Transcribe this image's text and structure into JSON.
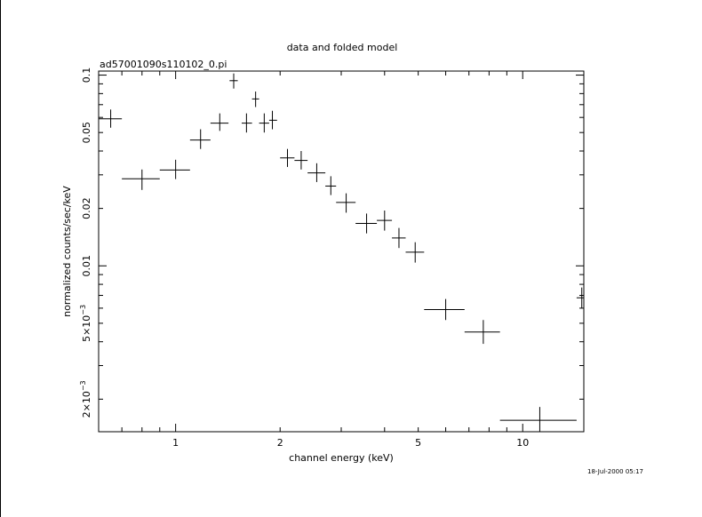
{
  "chart_data": {
    "type": "scatter",
    "title": "data and folded model",
    "subtitle": "ad57001090s110102_0.pi",
    "xlabel": "channel energy (keV)",
    "ylabel": "normalized counts/sec/keV",
    "timestamp": "18-Jul-2000 05:17",
    "xscale": "log",
    "yscale": "log",
    "xlim": [
      0.6,
      15.0
    ],
    "ylim": [
      0.00135,
      0.105
    ],
    "x_ticks": [
      {
        "value": 1,
        "label": "1"
      },
      {
        "value": 2,
        "label": "2"
      },
      {
        "value": 5,
        "label": "5"
      },
      {
        "value": 10,
        "label": "10"
      }
    ],
    "y_ticks": [
      {
        "value": 0.1,
        "label": "0.1"
      },
      {
        "value": 0.05,
        "label": "0.05"
      },
      {
        "value": 0.02,
        "label": "0.02"
      },
      {
        "value": 0.01,
        "label": "0.01"
      },
      {
        "value": 0.005,
        "label": "5×10",
        "exp": "−3"
      },
      {
        "value": 0.002,
        "label": "2×10",
        "exp": "−3"
      }
    ],
    "grid": false,
    "series": [
      {
        "points": [
          {
            "x": 0.65,
            "xlo": 0.6,
            "xhi": 0.7,
            "y": 0.059,
            "ylo": 0.053,
            "yhi": 0.066
          },
          {
            "x": 0.8,
            "xlo": 0.7,
            "xhi": 0.9,
            "y": 0.0286,
            "ylo": 0.025,
            "yhi": 0.032
          },
          {
            "x": 1.0,
            "xlo": 0.9,
            "xhi": 1.1,
            "y": 0.0318,
            "ylo": 0.0285,
            "yhi": 0.036
          },
          {
            "x": 1.18,
            "xlo": 1.1,
            "xhi": 1.26,
            "y": 0.0457,
            "ylo": 0.041,
            "yhi": 0.052
          },
          {
            "x": 1.34,
            "xlo": 1.26,
            "xhi": 1.42,
            "y": 0.056,
            "ylo": 0.051,
            "yhi": 0.063
          },
          {
            "x": 1.47,
            "xlo": 1.43,
            "xhi": 1.51,
            "y": 0.0935,
            "ylo": 0.085,
            "yhi": 0.102
          },
          {
            "x": 1.6,
            "xlo": 1.55,
            "xhi": 1.66,
            "y": 0.056,
            "ylo": 0.05,
            "yhi": 0.063
          },
          {
            "x": 1.7,
            "xlo": 1.66,
            "xhi": 1.74,
            "y": 0.075,
            "ylo": 0.068,
            "yhi": 0.082
          },
          {
            "x": 1.8,
            "xlo": 1.74,
            "xhi": 1.86,
            "y": 0.056,
            "ylo": 0.05,
            "yhi": 0.063
          },
          {
            "x": 1.9,
            "xlo": 1.86,
            "xhi": 1.96,
            "y": 0.058,
            "ylo": 0.052,
            "yhi": 0.065
          },
          {
            "x": 2.1,
            "xlo": 2.0,
            "xhi": 2.2,
            "y": 0.0368,
            "ylo": 0.033,
            "yhi": 0.041
          },
          {
            "x": 2.3,
            "xlo": 2.2,
            "xhi": 2.4,
            "y": 0.0357,
            "ylo": 0.032,
            "yhi": 0.04
          },
          {
            "x": 2.55,
            "xlo": 2.4,
            "xhi": 2.7,
            "y": 0.0307,
            "ylo": 0.0275,
            "yhi": 0.0345
          },
          {
            "x": 2.8,
            "xlo": 2.7,
            "xhi": 2.9,
            "y": 0.0262,
            "ylo": 0.0235,
            "yhi": 0.0295
          },
          {
            "x": 3.1,
            "xlo": 2.9,
            "xhi": 3.3,
            "y": 0.0215,
            "ylo": 0.019,
            "yhi": 0.024
          },
          {
            "x": 3.55,
            "xlo": 3.3,
            "xhi": 3.8,
            "y": 0.0167,
            "ylo": 0.0148,
            "yhi": 0.0188
          },
          {
            "x": 4.0,
            "xlo": 3.8,
            "xhi": 4.2,
            "y": 0.0173,
            "ylo": 0.0153,
            "yhi": 0.0195
          },
          {
            "x": 4.4,
            "xlo": 4.2,
            "xhi": 4.6,
            "y": 0.014,
            "ylo": 0.0124,
            "yhi": 0.0158
          },
          {
            "x": 4.9,
            "xlo": 4.6,
            "xhi": 5.2,
            "y": 0.0118,
            "ylo": 0.0104,
            "yhi": 0.0133
          },
          {
            "x": 6.0,
            "xlo": 5.2,
            "xhi": 6.8,
            "y": 0.0059,
            "ylo": 0.0052,
            "yhi": 0.0067
          },
          {
            "x": 7.7,
            "xlo": 6.8,
            "xhi": 8.6,
            "y": 0.0045,
            "ylo": 0.0039,
            "yhi": 0.0052
          },
          {
            "x": 11.2,
            "xlo": 8.6,
            "xhi": 14.3,
            "y": 0.00155,
            "ylo": 0.00135,
            "yhi": 0.00182
          },
          {
            "x": 14.8,
            "xlo": 14.3,
            "xhi": 15.0,
            "y": 0.0068,
            "ylo": 0.006,
            "yhi": 0.0077
          }
        ]
      }
    ]
  }
}
